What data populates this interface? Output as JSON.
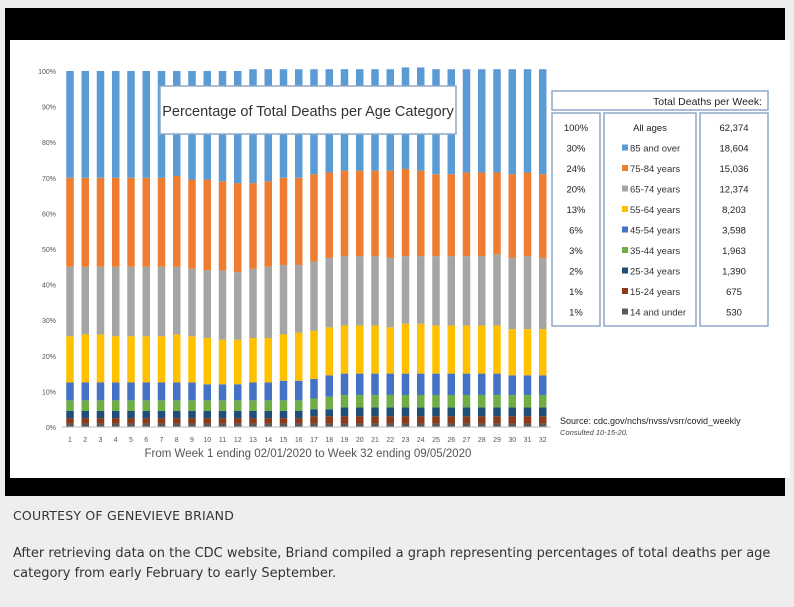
{
  "caption": {
    "credit": "COURTESY OF GENEVIEVE BRIAND",
    "description": "After retrieving data on the CDC website, Briand compiled a graph representing percentages of total deaths per age category from early February to early September."
  },
  "chart_data": {
    "type": "bar",
    "stacked": true,
    "title": "Percentage of Total  Deaths per Age Category",
    "xlabel": "From Week 1 ending 02/01/2020 to Week 32 ending 09/05/2020",
    "ylabel": "",
    "ylim": [
      0,
      100
    ],
    "yticks": [
      "0%",
      "10%",
      "20%",
      "30%",
      "40%",
      "50%",
      "60%",
      "70%",
      "80%",
      "90%",
      "100%"
    ],
    "grid": false,
    "legend_position": "right",
    "categories": [
      "1",
      "2",
      "3",
      "4",
      "5",
      "6",
      "7",
      "8",
      "9",
      "10",
      "11",
      "12",
      "13",
      "14",
      "15",
      "16",
      "17",
      "18",
      "19",
      "20",
      "21",
      "22",
      "23",
      "24",
      "25",
      "26",
      "27",
      "28",
      "29",
      "30",
      "31",
      "32"
    ],
    "series": [
      {
        "name": "14 and under",
        "color": "#5a5a5a",
        "values": [
          1,
          1,
          1,
          1,
          1,
          1,
          1,
          1,
          1,
          1,
          1,
          1,
          1,
          1,
          1,
          1,
          1,
          1,
          1,
          1,
          1,
          1,
          1,
          1,
          1,
          1,
          1,
          1,
          1,
          1,
          1,
          1
        ]
      },
      {
        "name": "15-24 years",
        "color": "#8b3a1a",
        "values": [
          1.5,
          1.5,
          1.5,
          1.5,
          1.5,
          1.5,
          1.5,
          1.5,
          1.5,
          1.5,
          1.5,
          1.5,
          1.5,
          1.5,
          1.5,
          1.5,
          2,
          2,
          2,
          2,
          2,
          2,
          2,
          2,
          2,
          2,
          2,
          2,
          2,
          2,
          2,
          2
        ]
      },
      {
        "name": "25-34 years",
        "color": "#1f4e79",
        "values": [
          2,
          2,
          2,
          2,
          2,
          2,
          2,
          2,
          2,
          2,
          2,
          2,
          2,
          2,
          2,
          2,
          2,
          2,
          2.5,
          2.5,
          2.5,
          2.5,
          2.5,
          2.5,
          2.5,
          2.5,
          2.5,
          2.5,
          2.5,
          2.5,
          2.5,
          2.5
        ]
      },
      {
        "name": "35-44 years",
        "color": "#70ad47",
        "values": [
          3,
          3,
          3,
          3,
          3,
          3,
          3,
          3,
          3,
          3,
          3,
          3,
          3,
          3,
          3,
          3,
          3,
          3.5,
          3.5,
          3.5,
          3.5,
          3.5,
          3.5,
          3.5,
          3.5,
          3.5,
          3.5,
          3.5,
          3.5,
          3.5,
          3.5,
          3.5
        ]
      },
      {
        "name": "45-54 years",
        "color": "#4472c4",
        "values": [
          5,
          5,
          5,
          5,
          5,
          5,
          5,
          5,
          5,
          4.5,
          4.5,
          4.5,
          5,
          5,
          5.5,
          5.5,
          5.5,
          6,
          6,
          6,
          6,
          6,
          6,
          6,
          6,
          6,
          6,
          6,
          6,
          5.5,
          5.5,
          5.5
        ]
      },
      {
        "name": "55-64 years",
        "color": "#ffc000",
        "values": [
          13,
          13.5,
          13.5,
          13,
          13,
          13,
          13,
          13.5,
          13,
          13,
          12.5,
          12.5,
          12.5,
          12.5,
          13,
          13.5,
          13.5,
          13.5,
          13.5,
          13.5,
          13.5,
          13,
          14,
          14,
          13.5,
          13.5,
          13.5,
          13.5,
          13.5,
          13,
          13,
          13
        ]
      },
      {
        "name": "65-74 years",
        "color": "#a5a5a5",
        "values": [
          19.5,
          19,
          19,
          19.5,
          19.5,
          19.5,
          19.5,
          19,
          19,
          19,
          19.5,
          19,
          19.5,
          20,
          19.5,
          19,
          19.5,
          19.5,
          19.5,
          19.5,
          19.5,
          19.5,
          19,
          19,
          19.5,
          19.5,
          19.5,
          19.5,
          20,
          20,
          20.5,
          20
        ]
      },
      {
        "name": "75-84 years",
        "color": "#ed7d31",
        "values": [
          25,
          25,
          25,
          25,
          25,
          25,
          25,
          25.5,
          25,
          25.5,
          25,
          25,
          24,
          24,
          24.5,
          24.5,
          24.5,
          24,
          24,
          24,
          24,
          24.5,
          24.5,
          24,
          23,
          23,
          23.5,
          23.5,
          23,
          23.5,
          23.5,
          23.5
        ]
      },
      {
        "name": "85 and over",
        "color": "#5b9bd5",
        "values": [
          30,
          30,
          30,
          30,
          30,
          30,
          30,
          29.5,
          30.5,
          30.5,
          31,
          31.5,
          32,
          31.5,
          30.5,
          30.5,
          29.5,
          29,
          28.5,
          28.5,
          28.5,
          28.5,
          28.5,
          29,
          29.5,
          29.5,
          29,
          29,
          29,
          29.5,
          29,
          29.5
        ]
      }
    ],
    "table": {
      "header": "Total Deaths per Week:",
      "rows": [
        {
          "pct": "100%",
          "label": "All ages",
          "value": "62,374",
          "color": ""
        },
        {
          "pct": "30%",
          "label": "85 and over",
          "value": "18,604",
          "color": "#5b9bd5"
        },
        {
          "pct": "24%",
          "label": "75-84 years",
          "value": "15,036",
          "color": "#ed7d31"
        },
        {
          "pct": "20%",
          "label": "65-74 years",
          "value": "12,374",
          "color": "#a5a5a5"
        },
        {
          "pct": "13%",
          "label": "55-64 years",
          "value": "8,203",
          "color": "#ffc000"
        },
        {
          "pct": "6%",
          "label": "45-54 years",
          "value": "3,598",
          "color": "#4472c4"
        },
        {
          "pct": "3%",
          "label": "35-44 years",
          "value": "1,963",
          "color": "#70ad47"
        },
        {
          "pct": "2%",
          "label": "25-34 years",
          "value": "1,390",
          "color": "#1f4e79"
        },
        {
          "pct": "1%",
          "label": "15-24 years",
          "value": "675",
          "color": "#8b3a1a"
        },
        {
          "pct": "1%",
          "label": "14 and under",
          "value": "530",
          "color": "#5a5a5a"
        }
      ]
    },
    "source": "Source: cdc.gov/nchs/nvss/vsrr/covid_weekly",
    "consulted": "Consulted 10-15-20."
  }
}
